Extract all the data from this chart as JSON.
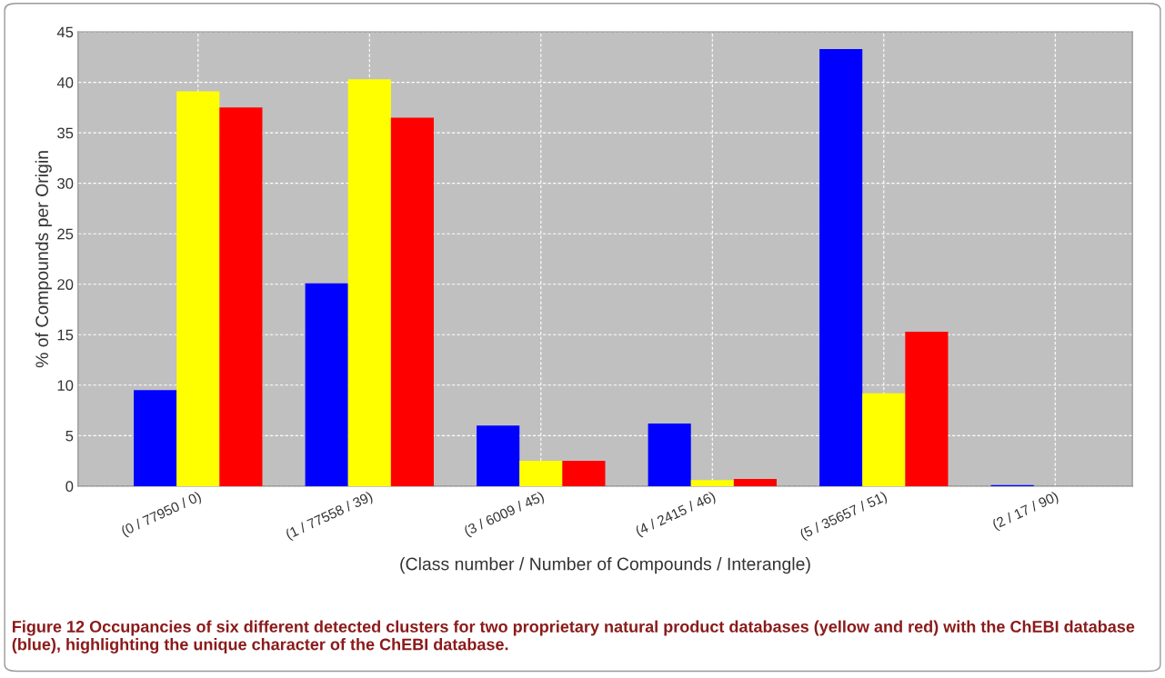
{
  "chart_data": {
    "type": "bar",
    "xlabel": "(Class number / Number of Compounds / Interangle)",
    "ylabel": "% of Compounds per Origin",
    "categories": [
      "(0 / 77950 / 0)",
      "(1 / 77558 / 39)",
      "(3 / 6009 / 45)",
      "(4 / 2415 / 46)",
      "(5 / 35657 / 51)",
      "(2 / 17 / 90)"
    ],
    "series": [
      {
        "color": "#0000ff",
        "values": [
          9.5,
          20.1,
          6.0,
          6.2,
          43.3,
          0.1
        ]
      },
      {
        "color": "#ffff00",
        "values": [
          39.1,
          40.3,
          2.5,
          0.6,
          9.2,
          0
        ]
      },
      {
        "color": "#ff0000",
        "values": [
          37.5,
          36.5,
          2.5,
          0.7,
          15.3,
          0
        ]
      }
    ],
    "ylim": [
      0,
      45
    ],
    "yticks": [
      0,
      5,
      10,
      15,
      20,
      25,
      30,
      35,
      40,
      45
    ],
    "grid": true,
    "annotations": [
      "Figure 12 Occupancies of six different detected clusters for two proprietary natural product databases (yellow and red) with the ChEBI database (blue), highlighting the unique character of the ChEBI database."
    ]
  }
}
